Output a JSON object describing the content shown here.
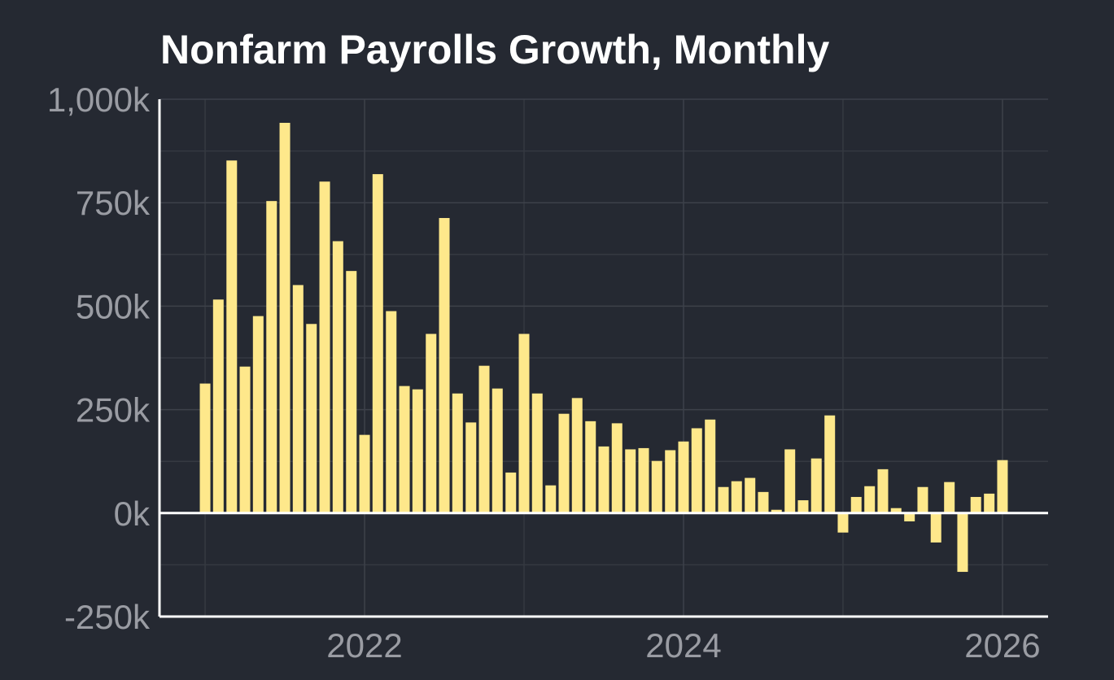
{
  "chart_data": {
    "type": "bar",
    "title": "Nonfarm Payrolls Growth, Monthly",
    "x": [
      2021,
      2021.083,
      2021.167,
      2021.25,
      2021.333,
      2021.417,
      2021.5,
      2021.583,
      2021.667,
      2021.75,
      2021.833,
      2021.917,
      2022,
      2022.083,
      2022.167,
      2022.25,
      2022.333,
      2022.417,
      2022.5,
      2022.583,
      2022.667,
      2022.75,
      2022.833,
      2022.917,
      2023,
      2023.083,
      2023.167,
      2023.25,
      2023.333,
      2023.417,
      2023.5,
      2023.583,
      2023.667,
      2023.75,
      2023.833,
      2023.917,
      2024,
      2024.083,
      2024.167,
      2024.25,
      2024.333,
      2024.417,
      2024.5,
      2024.583,
      2024.667,
      2024.75,
      2024.833,
      2024.917,
      2025,
      2025.083,
      2025.167,
      2025.25,
      2025.333,
      2025.417,
      2025.5,
      2025.583,
      2025.667,
      2025.75,
      2025.833,
      2025.917,
      2026
    ],
    "values": [
      313,
      516,
      852,
      354,
      476,
      754,
      943,
      551,
      457,
      801,
      657,
      585,
      189,
      819,
      488,
      307,
      299,
      433,
      713,
      289,
      219,
      356,
      301,
      98,
      433,
      289,
      67,
      240,
      278,
      222,
      161,
      217,
      154,
      157,
      126,
      152,
      173,
      205,
      226,
      63,
      77,
      85,
      51,
      8,
      154,
      31,
      132,
      236,
      -47,
      39,
      65,
      106,
      12,
      -20,
      63,
      -71,
      75,
      -142,
      39,
      47,
      128
    ],
    "color": "#fee88b",
    "xlim": [
      2020.714,
      2026.286
    ],
    "xticks": [
      2022,
      2024,
      2026
    ],
    "ylim": [
      -250,
      1000
    ],
    "yticks": [
      {
        "value": -250,
        "label": "-250k"
      },
      {
        "value": 0,
        "label": "0k"
      },
      {
        "value": 250,
        "label": "250k"
      },
      {
        "value": 500,
        "label": "500k"
      },
      {
        "value": 750,
        "label": "750k"
      },
      {
        "value": 1000,
        "label": "1,000k"
      }
    ],
    "grid": true
  }
}
